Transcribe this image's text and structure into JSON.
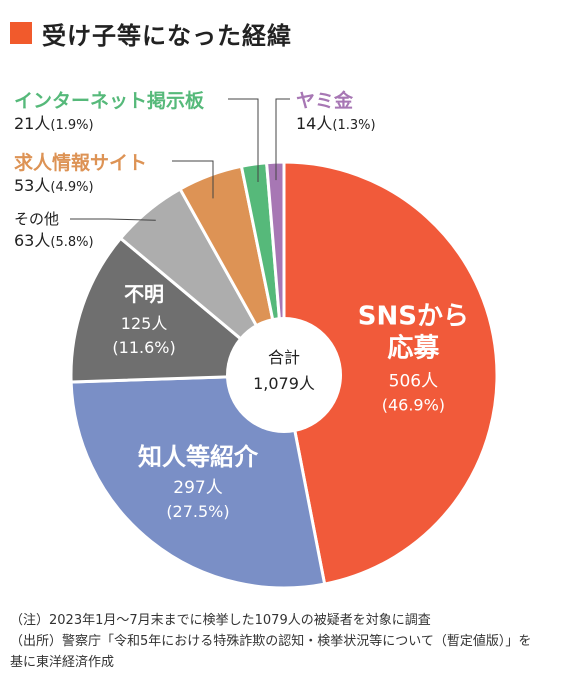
{
  "title": "受け子等になった経緯",
  "chart_data": {
    "type": "pie",
    "style": "donut",
    "center_label": {
      "line1": "合計",
      "line2": "1,079人"
    },
    "slices": [
      {
        "name": "SNSから",
        "name2": "応募",
        "count": "506人",
        "pct": "(46.9%)",
        "value": 46.9,
        "color": "#f15a3a"
      },
      {
        "name": "知人等紹介",
        "name2": "",
        "count": "297人",
        "pct": "(27.5%)",
        "value": 27.5,
        "color": "#7a8fc6"
      },
      {
        "name": "不明",
        "name2": "",
        "count": "125人",
        "pct": "(11.6%)",
        "value": 11.6,
        "color": "#6f6f6f"
      },
      {
        "name": "その他",
        "name2": "",
        "count": "63人",
        "pct": "(5.8%)",
        "value": 5.8,
        "color": "#adadad"
      },
      {
        "name": "求人情報サイト",
        "name2": "",
        "count": "53人",
        "pct": "(4.9%)",
        "value": 4.9,
        "color": "#dd9355"
      },
      {
        "name": "インターネット掲示板",
        "name2": "",
        "count": "21人",
        "pct": "(1.9%)",
        "value": 1.9,
        "color": "#56b97a"
      },
      {
        "name": "ヤミ金",
        "name2": "",
        "count": "14人",
        "pct": "(1.3%)",
        "value": 1.3,
        "color": "#a777b4"
      }
    ]
  },
  "notes": [
    "（注）2023年1月～7月末までに検挙した1079人の被疑者を対象に調査",
    "（出所）警察庁「令和5年における特殊詐欺の認知・検挙状況等について（暫定値版）」を",
    "基に東洋経済作成"
  ]
}
